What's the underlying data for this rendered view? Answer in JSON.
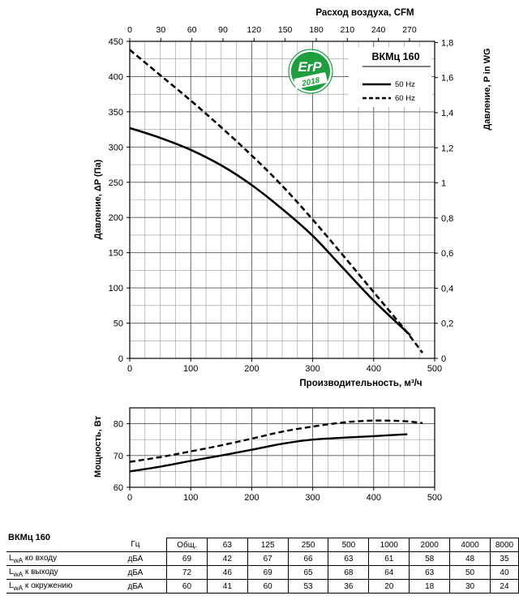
{
  "chart_data": [
    {
      "type": "line",
      "title": "ВКМц 160",
      "xlabel": "Производительность, м³/ч",
      "x2label": "Расход воздуха, CFM",
      "ylabel": "Давление, ΔP (Па)",
      "y2label": "Давление,  P in WG",
      "xlim": [
        0,
        500
      ],
      "ylim": [
        0,
        450
      ],
      "x2lim": [
        0,
        294.3
      ],
      "y2lim": [
        0,
        1.8065
      ],
      "x_ticks": [
        0,
        100,
        200,
        300,
        400,
        500
      ],
      "y_ticks": [
        0,
        50,
        100,
        150,
        200,
        250,
        300,
        350,
        400,
        450
      ],
      "x2_ticks": [
        "0",
        "30",
        "60",
        "90",
        "120",
        "150",
        "180",
        "210",
        "240",
        "270"
      ],
      "y2_ticks": [
        "0",
        "0,2",
        "0,4",
        "0,6",
        "0,8",
        "1",
        "1,2",
        "1,4",
        "1,6",
        "1,8"
      ],
      "grid": true,
      "legend_position": "top-right",
      "badge": {
        "line1": "ErP",
        "line2": "2018"
      },
      "series": [
        {
          "name": "50 Hz",
          "style": "solid",
          "x": [
            0,
            50,
            100,
            150,
            200,
            250,
            300,
            350,
            400,
            450,
            460
          ],
          "y": [
            327,
            313,
            296,
            274,
            246,
            212,
            174,
            128,
            82,
            41,
            33
          ]
        },
        {
          "name": "60 Hz",
          "style": "dashed",
          "x": [
            0,
            50,
            100,
            150,
            200,
            250,
            300,
            350,
            400,
            450,
            480
          ],
          "y": [
            438,
            402,
            366,
            328,
            288,
            245,
            197,
            146,
            94,
            42,
            8
          ]
        }
      ]
    },
    {
      "type": "line",
      "ylabel": "Мощность, Вт",
      "xlim": [
        0,
        500
      ],
      "ylim": [
        60,
        85
      ],
      "x_ticks": [
        0,
        100,
        200,
        300,
        400,
        500
      ],
      "y_ticks": [
        60,
        70,
        80
      ],
      "grid": true,
      "series": [
        {
          "style": "solid",
          "x": [
            0,
            50,
            100,
            150,
            200,
            250,
            300,
            350,
            400,
            455
          ],
          "y": [
            65,
            66.5,
            68.3,
            70,
            71.8,
            73.7,
            75,
            75.6,
            76.1,
            76.7
          ]
        },
        {
          "style": "dashed",
          "x": [
            0,
            50,
            100,
            150,
            200,
            250,
            300,
            350,
            400,
            450,
            480
          ],
          "y": [
            68,
            69.5,
            71.3,
            73.2,
            75.3,
            77.5,
            79.1,
            80.4,
            81,
            80.8,
            80.2
          ]
        }
      ]
    }
  ],
  "noise_table": {
    "title": "ВКМц 160",
    "header": [
      "Гц",
      "Общ.",
      "63",
      "125",
      "250",
      "500",
      "1000",
      "2000",
      "4000",
      "8000"
    ],
    "rows": [
      {
        "label_main": "L",
        "label_sub": "wA",
        "label_rest": " ко входу",
        "unit": "дБА",
        "values": [
          "69",
          "42",
          "67",
          "66",
          "63",
          "61",
          "58",
          "48",
          "35"
        ]
      },
      {
        "label_main": "L",
        "label_sub": "wA",
        "label_rest": " к выходу",
        "unit": "дБА",
        "values": [
          "72",
          "46",
          "69",
          "65",
          "68",
          "64",
          "63",
          "50",
          "40"
        ]
      },
      {
        "label_main": "L",
        "label_sub": "wA",
        "label_rest": " к окружению",
        "unit": "дБА",
        "values": [
          "60",
          "41",
          "60",
          "53",
          "36",
          "20",
          "18",
          "30",
          "24"
        ]
      }
    ]
  }
}
